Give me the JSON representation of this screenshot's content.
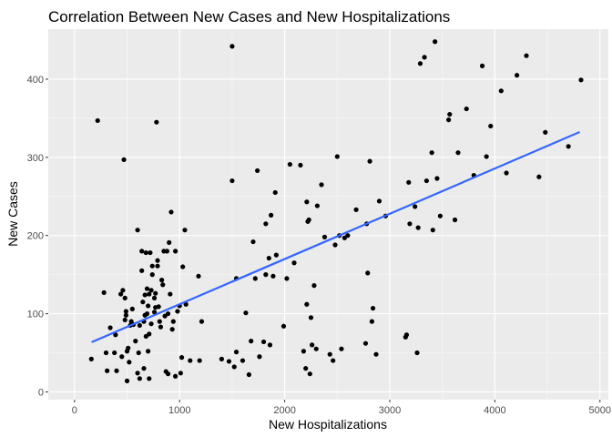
{
  "chart_data": {
    "type": "scatter",
    "title": "Correlation Between New Cases and New Hospitalizations",
    "xlabel": "New Hospitalizations",
    "ylabel": "New Cases",
    "xlim": [
      -250,
      5080
    ],
    "ylim": [
      -10,
      464
    ],
    "x_ticks": [
      0,
      1000,
      2000,
      3000,
      4000,
      5000
    ],
    "x_tick_labels": [
      "0",
      "1000",
      "2000",
      "3000",
      "4000",
      "5000"
    ],
    "y_ticks": [
      0,
      100,
      200,
      300,
      400
    ],
    "y_tick_labels": [
      "0",
      "100",
      "200",
      "300",
      "400"
    ],
    "grid": true,
    "background": "#ebebeb",
    "point_color": "#000000",
    "trend_color": "#3366ff",
    "trend_line": {
      "x0": 170,
      "y0": 64,
      "x1": 4800,
      "y1": 332
    },
    "points": [
      [
        160,
        42
      ],
      [
        220,
        347
      ],
      [
        280,
        127
      ],
      [
        300,
        50
      ],
      [
        310,
        27
      ],
      [
        340,
        82
      ],
      [
        380,
        50
      ],
      [
        390,
        73
      ],
      [
        400,
        27
      ],
      [
        440,
        125
      ],
      [
        450,
        45
      ],
      [
        460,
        130
      ],
      [
        470,
        297
      ],
      [
        480,
        120
      ],
      [
        480,
        92
      ],
      [
        490,
        98
      ],
      [
        490,
        103
      ],
      [
        500,
        14
      ],
      [
        500,
        52
      ],
      [
        510,
        56
      ],
      [
        520,
        38
      ],
      [
        530,
        85
      ],
      [
        540,
        90
      ],
      [
        550,
        106
      ],
      [
        560,
        86
      ],
      [
        580,
        65
      ],
      [
        600,
        207
      ],
      [
        600,
        24
      ],
      [
        610,
        50
      ],
      [
        620,
        17
      ],
      [
        620,
        85
      ],
      [
        640,
        180
      ],
      [
        640,
        155
      ],
      [
        650,
        115
      ],
      [
        660,
        30
      ],
      [
        660,
        90
      ],
      [
        670,
        124
      ],
      [
        670,
        98
      ],
      [
        680,
        178
      ],
      [
        680,
        71
      ],
      [
        690,
        132
      ],
      [
        690,
        100
      ],
      [
        700,
        110
      ],
      [
        700,
        52
      ],
      [
        710,
        74
      ],
      [
        710,
        125
      ],
      [
        710,
        17
      ],
      [
        720,
        178
      ],
      [
        730,
        87
      ],
      [
        730,
        130
      ],
      [
        740,
        161
      ],
      [
        740,
        150
      ],
      [
        760,
        102
      ],
      [
        760,
        120
      ],
      [
        770,
        108
      ],
      [
        770,
        126
      ],
      [
        780,
        345
      ],
      [
        790,
        168
      ],
      [
        790,
        161
      ],
      [
        800,
        109
      ],
      [
        810,
        90
      ],
      [
        820,
        83
      ],
      [
        830,
        143
      ],
      [
        840,
        137
      ],
      [
        850,
        180
      ],
      [
        860,
        97
      ],
      [
        870,
        26
      ],
      [
        880,
        180
      ],
      [
        890,
        23
      ],
      [
        890,
        100
      ],
      [
        900,
        191
      ],
      [
        910,
        125
      ],
      [
        920,
        230
      ],
      [
        930,
        80
      ],
      [
        940,
        90
      ],
      [
        960,
        20
      ],
      [
        960,
        180
      ],
      [
        980,
        103
      ],
      [
        1000,
        110
      ],
      [
        1010,
        24
      ],
      [
        1020,
        44
      ],
      [
        1030,
        160
      ],
      [
        1050,
        207
      ],
      [
        1060,
        112
      ],
      [
        1100,
        40
      ],
      [
        1180,
        148
      ],
      [
        1190,
        40
      ],
      [
        1210,
        90
      ],
      [
        1400,
        42
      ],
      [
        1470,
        39
      ],
      [
        1500,
        270
      ],
      [
        1500,
        442
      ],
      [
        1520,
        32
      ],
      [
        1540,
        145
      ],
      [
        1540,
        51
      ],
      [
        1600,
        40
      ],
      [
        1630,
        101
      ],
      [
        1660,
        22
      ],
      [
        1680,
        65
      ],
      [
        1700,
        192
      ],
      [
        1720,
        145
      ],
      [
        1740,
        283
      ],
      [
        1760,
        45
      ],
      [
        1800,
        64
      ],
      [
        1820,
        150
      ],
      [
        1820,
        215
      ],
      [
        1850,
        171
      ],
      [
        1860,
        60
      ],
      [
        1870,
        226
      ],
      [
        1890,
        148
      ],
      [
        1910,
        255
      ],
      [
        1920,
        175
      ],
      [
        1990,
        84
      ],
      [
        2020,
        145
      ],
      [
        2050,
        291
      ],
      [
        2090,
        165
      ],
      [
        2150,
        290
      ],
      [
        2180,
        52
      ],
      [
        2200,
        30
      ],
      [
        2210,
        243
      ],
      [
        2210,
        112
      ],
      [
        2220,
        218
      ],
      [
        2230,
        220
      ],
      [
        2240,
        23
      ],
      [
        2250,
        95
      ],
      [
        2260,
        60
      ],
      [
        2280,
        136
      ],
      [
        2300,
        55
      ],
      [
        2310,
        238
      ],
      [
        2350,
        265
      ],
      [
        2380,
        198
      ],
      [
        2430,
        48
      ],
      [
        2460,
        40
      ],
      [
        2480,
        188
      ],
      [
        2500,
        301
      ],
      [
        2520,
        200
      ],
      [
        2540,
        55
      ],
      [
        2570,
        197
      ],
      [
        2600,
        200
      ],
      [
        2680,
        233
      ],
      [
        2770,
        62
      ],
      [
        2780,
        215
      ],
      [
        2790,
        152
      ],
      [
        2810,
        295
      ],
      [
        2830,
        90
      ],
      [
        2840,
        107
      ],
      [
        2870,
        48
      ],
      [
        2900,
        244
      ],
      [
        2960,
        225
      ],
      [
        3150,
        70
      ],
      [
        3160,
        73
      ],
      [
        3180,
        268
      ],
      [
        3190,
        215
      ],
      [
        3240,
        237
      ],
      [
        3260,
        50
      ],
      [
        3270,
        210
      ],
      [
        3290,
        420
      ],
      [
        3330,
        428
      ],
      [
        3350,
        270
      ],
      [
        3400,
        306
      ],
      [
        3410,
        207
      ],
      [
        3430,
        448
      ],
      [
        3450,
        273
      ],
      [
        3480,
        225
      ],
      [
        3560,
        348
      ],
      [
        3570,
        355
      ],
      [
        3620,
        220
      ],
      [
        3650,
        306
      ],
      [
        3730,
        362
      ],
      [
        3800,
        277
      ],
      [
        3880,
        417
      ],
      [
        3920,
        301
      ],
      [
        3960,
        340
      ],
      [
        4060,
        385
      ],
      [
        4110,
        280
      ],
      [
        4210,
        405
      ],
      [
        4300,
        430
      ],
      [
        4420,
        275
      ],
      [
        4480,
        332
      ],
      [
        4700,
        314
      ],
      [
        4820,
        399
      ]
    ]
  }
}
